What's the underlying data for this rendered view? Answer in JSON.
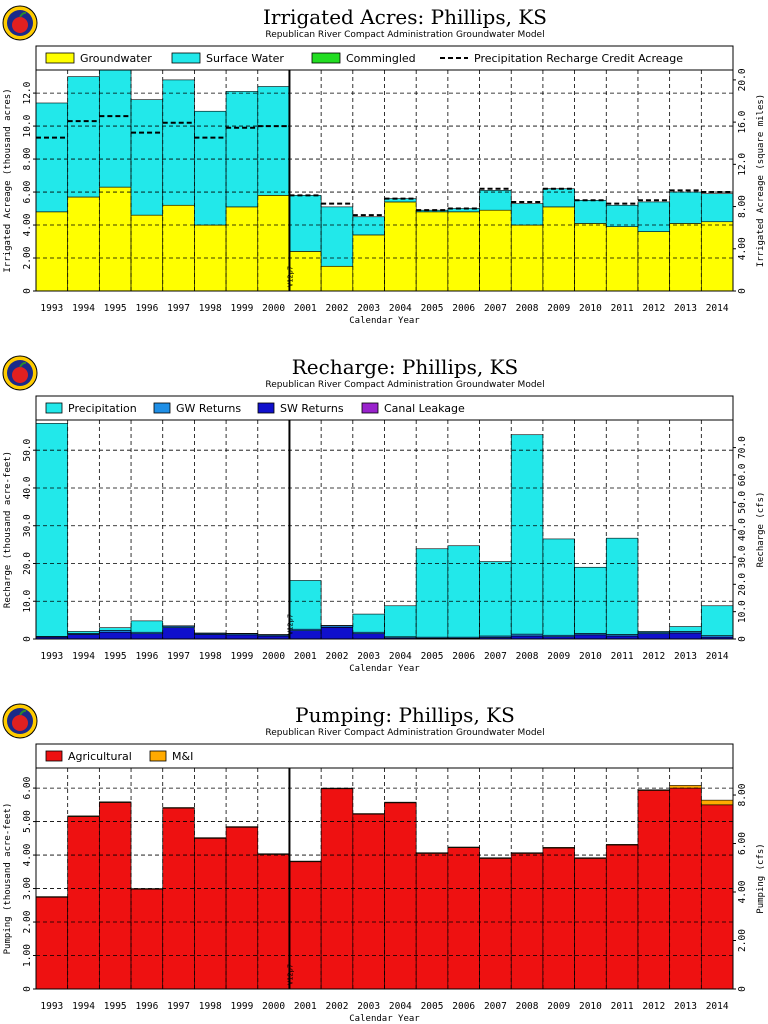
{
  "colors": {
    "groundwater": "#ffff00",
    "surface_water": "#22e8ea",
    "commingled": "#22dd22",
    "precipitation": "#22e8ea",
    "gw_returns": "#1f8fe6",
    "sw_returns": "#1010cc",
    "canal_leakage": "#9922cc",
    "agricultural": "#ee1111",
    "mi": "#ffaa00"
  },
  "chart_data": [
    {
      "type": "bar",
      "title": "Irrigated Acres: Phillips, KS",
      "subtitle": "Republican River Compact Administration Groundwater Model",
      "xlabel": "Calendar Year",
      "ylabel": "Irrigated Acreage (thousand acres)",
      "ylabel_right": "Irrigated Acreage (square miles)",
      "marker_label": "V12p7",
      "marker_after": "2000",
      "categories": [
        "1993",
        "1994",
        "1995",
        "1996",
        "1997",
        "1998",
        "1999",
        "2000",
        "2001",
        "2002",
        "2003",
        "2004",
        "2005",
        "2006",
        "2007",
        "2008",
        "2009",
        "2010",
        "2011",
        "2012",
        "2013",
        "2014"
      ],
      "ylim": [
        0,
        13.4
      ],
      "yticks": [
        0,
        2.0,
        4.0,
        6.0,
        8.0,
        10.0,
        12.0
      ],
      "ytick_labels": [
        "0",
        "2.00",
        "4.00",
        "6.00",
        "8.00",
        "10.0",
        "12.0"
      ],
      "y2ticks": [
        0,
        4.0,
        8.0,
        12.0,
        16.0,
        20.0
      ],
      "y2tick_labels": [
        "0",
        "4.00",
        "8.00",
        "12.0",
        "16.0",
        "20.0"
      ],
      "y2_per_y": 1.5625,
      "stacked": true,
      "legend": [
        "Groundwater",
        "Surface Water",
        "Commingled",
        "Precipitation Recharge Credit Acreage"
      ],
      "series": [
        {
          "name": "Groundwater",
          "color_key": "groundwater",
          "values": [
            4.8,
            5.7,
            6.3,
            4.6,
            5.2,
            4.0,
            5.1,
            5.8,
            2.4,
            1.5,
            3.4,
            5.4,
            4.8,
            4.8,
            4.9,
            4.0,
            5.1,
            4.1,
            3.9,
            3.6,
            4.1,
            4.2
          ]
        },
        {
          "name": "Surface Water",
          "color_key": "surface_water",
          "values": [
            6.6,
            7.3,
            7.2,
            7.0,
            7.6,
            6.9,
            7.0,
            6.6,
            3.4,
            3.6,
            1.1,
            0.2,
            0.1,
            0.2,
            1.2,
            1.3,
            1.1,
            1.4,
            1.3,
            1.8,
            1.9,
            1.7
          ]
        },
        {
          "name": "Commingled",
          "color_key": "commingled",
          "values": [
            0,
            0,
            0,
            0,
            0,
            0,
            0,
            0,
            0,
            0,
            0,
            0,
            0,
            0,
            0,
            0,
            0,
            0,
            0,
            0,
            0,
            0
          ]
        }
      ],
      "line": {
        "name": "Precipitation Recharge Credit Acreage",
        "values": [
          9.3,
          10.3,
          10.6,
          9.6,
          10.2,
          9.3,
          9.9,
          10.0,
          5.8,
          5.3,
          4.6,
          5.6,
          4.9,
          5.0,
          6.2,
          5.4,
          6.2,
          5.5,
          5.3,
          5.5,
          6.1,
          6.0
        ]
      }
    },
    {
      "type": "bar",
      "title": "Recharge: Phillips, KS",
      "subtitle": "Republican River Compact Administration Groundwater Model",
      "xlabel": "Calendar Year",
      "ylabel": "Recharge (thousand acre-feet)",
      "ylabel_right": "Recharge (cfs)",
      "marker_label": "V12p7",
      "marker_after": "2000",
      "categories": [
        "1993",
        "1994",
        "1995",
        "1996",
        "1997",
        "1998",
        "1999",
        "2000",
        "2001",
        "2002",
        "2003",
        "2004",
        "2005",
        "2006",
        "2007",
        "2008",
        "2009",
        "2010",
        "2011",
        "2012",
        "2013",
        "2014"
      ],
      "ylim": [
        0,
        58
      ],
      "yticks": [
        0,
        10.0,
        20.0,
        30.0,
        40.0,
        50.0
      ],
      "ytick_labels": [
        "0",
        "10.0",
        "20.0",
        "30.0",
        "40.0",
        "50.0"
      ],
      "y2ticks": [
        0,
        10.0,
        20.0,
        30.0,
        40.0,
        50.0,
        60.0,
        70.0
      ],
      "y2tick_labels": [
        "0",
        "10.0",
        "20.0",
        "30.0",
        "40.0",
        "50.0",
        "60.0",
        "70.0"
      ],
      "y2_per_y": 1.381,
      "stacked": true,
      "legend": [
        "Precipitation",
        "GW Returns",
        "SW Returns",
        "Canal Leakage"
      ],
      "series": [
        {
          "name": "SW Returns",
          "color_key": "sw_returns",
          "values": [
            0.5,
            1.2,
            1.8,
            1.4,
            3.0,
            1.2,
            1.1,
            0.8,
            2.2,
            3.1,
            1.4,
            0.3,
            0.2,
            0.2,
            0.4,
            0.8,
            0.6,
            1.1,
            0.8,
            1.4,
            1.6,
            0.5
          ]
        },
        {
          "name": "GW Returns",
          "color_key": "gw_returns",
          "values": [
            0.2,
            0.3,
            0.5,
            0.4,
            0.4,
            0.3,
            0.3,
            0.3,
            0.4,
            0.4,
            0.4,
            0.3,
            0.3,
            0.3,
            0.4,
            0.5,
            0.4,
            0.4,
            0.4,
            0.4,
            0.4,
            0.4
          ]
        },
        {
          "name": "Canal Leakage",
          "color_key": "canal_leakage",
          "values": [
            0,
            0,
            0,
            0,
            0,
            0,
            0,
            0,
            0,
            0,
            0,
            0,
            0,
            0,
            0,
            0,
            0,
            0,
            0,
            0,
            0,
            0
          ]
        },
        {
          "name": "Precipitation",
          "color_key": "precipitation",
          "values": [
            56.4,
            0.5,
            0.7,
            3.0,
            0.1,
            0.1,
            0.1,
            0.1,
            12.9,
            0.1,
            4.8,
            8.2,
            23.4,
            24.2,
            19.7,
            52.8,
            25.5,
            17.5,
            25.5,
            0.2,
            1.3,
            7.9
          ]
        }
      ]
    },
    {
      "type": "bar",
      "title": "Pumping: Phillips, KS",
      "subtitle": "Republican River Compact Administration Groundwater Model",
      "xlabel": "Calendar Year",
      "ylabel": "Pumping (thousand acre-feet)",
      "ylabel_right": "Pumping (cfs)",
      "marker_label": "V12p7",
      "marker_after": "2000",
      "categories": [
        "1993",
        "1994",
        "1995",
        "1996",
        "1997",
        "1998",
        "1999",
        "2000",
        "2001",
        "2002",
        "2003",
        "2004",
        "2005",
        "2006",
        "2007",
        "2008",
        "2009",
        "2010",
        "2011",
        "2012",
        "2013",
        "2014"
      ],
      "ylim": [
        0,
        6.6
      ],
      "yticks": [
        0,
        1.0,
        2.0,
        3.0,
        4.0,
        5.0,
        6.0
      ],
      "ytick_labels": [
        "0",
        "1.00",
        "2.00",
        "3.00",
        "4.00",
        "5.00",
        "6.00"
      ],
      "y2ticks": [
        0,
        2.0,
        4.0,
        6.0,
        8.0
      ],
      "y2tick_labels": [
        "0",
        "2.00",
        "4.00",
        "6.00",
        "8.00"
      ],
      "y2_per_y": 1.381,
      "stacked": true,
      "legend": [
        "Agricultural",
        "M&I"
      ],
      "series": [
        {
          "name": "Agricultural",
          "color_key": "agricultural",
          "values": [
            2.74,
            5.15,
            5.57,
            2.98,
            5.4,
            4.5,
            4.83,
            4.02,
            3.8,
            5.98,
            5.22,
            5.56,
            4.05,
            4.22,
            3.9,
            4.05,
            4.21,
            3.9,
            4.3,
            5.93,
            6.0,
            5.5
          ]
        },
        {
          "name": "M&I",
          "color_key": "mi",
          "values": [
            0.02,
            0.02,
            0.02,
            0.02,
            0.02,
            0.02,
            0.02,
            0.02,
            0.02,
            0.02,
            0.02,
            0.02,
            0.02,
            0.02,
            0.02,
            0.02,
            0.02,
            0.02,
            0.02,
            0.02,
            0.08,
            0.14
          ]
        }
      ]
    }
  ]
}
